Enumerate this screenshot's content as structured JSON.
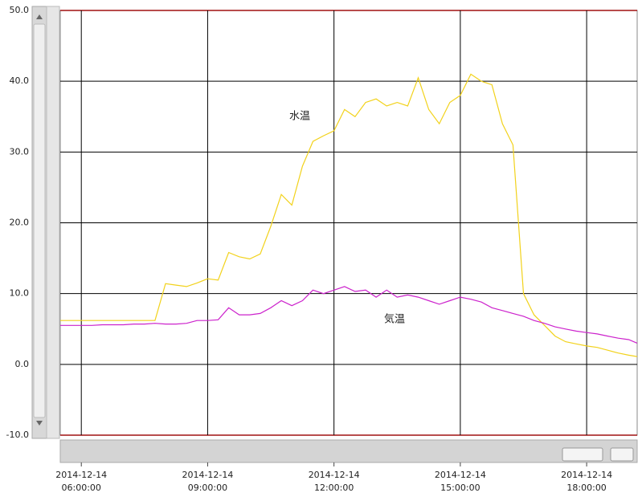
{
  "chart_data": {
    "type": "line",
    "annotations": [
      "水温",
      "気温"
    ],
    "x": [
      5.5,
      5.75,
      6,
      6.25,
      6.5,
      6.75,
      7,
      7.25,
      7.5,
      7.75,
      8,
      8.25,
      8.5,
      8.75,
      9,
      9.25,
      9.5,
      9.75,
      10,
      10.25,
      10.5,
      10.75,
      11,
      11.25,
      11.5,
      11.75,
      12,
      12.25,
      12.5,
      12.75,
      13,
      13.25,
      13.5,
      13.75,
      14,
      14.25,
      14.5,
      14.75,
      15,
      15.25,
      15.5,
      15.75,
      16,
      16.25,
      16.5,
      16.75,
      17,
      17.25,
      17.5,
      17.75,
      18,
      18.25,
      18.5,
      18.75,
      19,
      19.2
    ],
    "series": [
      {
        "name": "水温",
        "color": "#f2d21b",
        "values": [
          6.2,
          6.2,
          6.2,
          6.2,
          6.2,
          6.2,
          6.2,
          6.2,
          6.2,
          6.2,
          11.4,
          11.2,
          11.0,
          11.5,
          12.1,
          11.9,
          15.8,
          15.2,
          14.9,
          15.6,
          19.5,
          24.0,
          22.5,
          28.0,
          31.5,
          32.3,
          33.0,
          36.0,
          35.0,
          37.0,
          37.5,
          36.5,
          37.0,
          36.5,
          40.5,
          36.0,
          34.0,
          37.0,
          38.0,
          41.0,
          40.0,
          39.5,
          34.0,
          31.0,
          10.0,
          7.0,
          5.5,
          4.0,
          3.2,
          2.9,
          2.6,
          2.4,
          2.0,
          1.6,
          1.3,
          1.1
        ]
      },
      {
        "name": "気温",
        "color": "#cc22cc",
        "values": [
          5.5,
          5.5,
          5.5,
          5.5,
          5.6,
          5.6,
          5.6,
          5.7,
          5.7,
          5.8,
          5.7,
          5.7,
          5.8,
          6.2,
          6.2,
          6.3,
          8.0,
          7.0,
          7.0,
          7.2,
          8.0,
          9.0,
          8.3,
          9.0,
          10.5,
          10.0,
          10.5,
          11.0,
          10.3,
          10.5,
          9.5,
          10.5,
          9.5,
          9.8,
          9.5,
          9.0,
          8.5,
          9.0,
          9.5,
          9.2,
          8.8,
          8.0,
          7.6,
          7.2,
          6.8,
          6.2,
          5.8,
          5.3,
          5.0,
          4.7,
          4.5,
          4.3,
          4.0,
          3.7,
          3.5,
          3.0
        ]
      }
    ],
    "xlim": [
      5.5,
      19.2
    ],
    "xticks": [
      {
        "value": 6,
        "label": "2014-12-14 06:00:00"
      },
      {
        "value": 9,
        "label": "2014-12-14 09:00:00"
      },
      {
        "value": 12,
        "label": "2014-12-14 12:00:00"
      },
      {
        "value": 15,
        "label": "2014-12-14 15:00:00"
      },
      {
        "value": 18,
        "label": "2014-12-14 18:00:00"
      }
    ],
    "ylim": [
      -10,
      50
    ],
    "yticks": [
      {
        "value": -10,
        "label": "-10.0"
      },
      {
        "value": 0,
        "label": "0.0"
      },
      {
        "value": 10,
        "label": "10.0"
      },
      {
        "value": 20,
        "label": "20.0"
      },
      {
        "value": 30,
        "label": "30.0"
      },
      {
        "value": 40,
        "label": "40.0"
      },
      {
        "value": 50,
        "label": "50.0"
      }
    ],
    "grid": true
  }
}
